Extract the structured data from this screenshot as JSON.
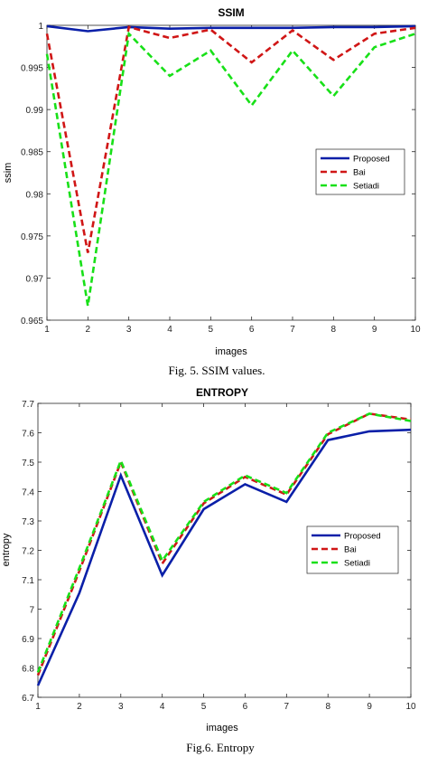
{
  "colors": {
    "Proposed": "#0a1fa8",
    "Bai": "#d01616",
    "Setiadi": "#18e018"
  },
  "legend_placement": "center-right",
  "chart_data": [
    {
      "type": "line",
      "title": "SSIM",
      "xlabel": "images",
      "ylabel": "ssim",
      "caption": "Fig. 5.  SSIM values.",
      "x": [
        1,
        2,
        3,
        4,
        5,
        6,
        7,
        8,
        9,
        10
      ],
      "xlim": [
        1,
        10
      ],
      "ylim": [
        0.965,
        1
      ],
      "xticks": [
        "1",
        "2",
        "3",
        "4",
        "5",
        "6",
        "7",
        "8",
        "9",
        "10"
      ],
      "yticks": [
        "0.965",
        "0.97",
        "0.975",
        "0.98",
        "0.985",
        "0.99",
        "0.995",
        "1"
      ],
      "ytick_values": [
        0.965,
        0.97,
        0.975,
        0.98,
        0.985,
        0.99,
        0.995,
        1
      ],
      "grid": false,
      "series": [
        {
          "name": "Proposed",
          "style": "solid",
          "values": [
            0.9999,
            0.9993,
            0.9998,
            0.9996,
            0.9997,
            0.9997,
            0.9997,
            0.9998,
            0.9998,
            0.9999
          ]
        },
        {
          "name": "Bai",
          "style": "dashed",
          "values": [
            0.999,
            0.973,
            0.9998,
            0.9985,
            0.9995,
            0.9956,
            0.9994,
            0.9959,
            0.999,
            0.9997
          ]
        },
        {
          "name": "Setiadi",
          "style": "dashed",
          "values": [
            0.9966,
            0.9667,
            0.999,
            0.994,
            0.997,
            0.9905,
            0.997,
            0.9916,
            0.9974,
            0.999
          ]
        }
      ]
    },
    {
      "type": "line",
      "title": "ENTROPY",
      "xlabel": "images",
      "ylabel": "entropy",
      "caption": "Fig.6. Entropy",
      "x": [
        1,
        2,
        3,
        4,
        5,
        6,
        7,
        8,
        9,
        10
      ],
      "xlim": [
        1,
        10
      ],
      "ylim": [
        6.7,
        7.7
      ],
      "xticks": [
        "1",
        "2",
        "3",
        "4",
        "5",
        "6",
        "7",
        "8",
        "9",
        "10"
      ],
      "yticks": [
        "6.7",
        "6.8",
        "6.9",
        "7",
        "7.1",
        "7.2",
        "7.3",
        "7.4",
        "7.5",
        "7.6",
        "7.7"
      ],
      "ytick_values": [
        6.7,
        6.8,
        6.9,
        7.0,
        7.1,
        7.2,
        7.3,
        7.4,
        7.5,
        7.6,
        7.7
      ],
      "grid": false,
      "series": [
        {
          "name": "Proposed",
          "style": "solid",
          "values": [
            6.74,
            7.055,
            7.455,
            7.115,
            7.34,
            7.425,
            7.365,
            7.575,
            7.605,
            7.61
          ]
        },
        {
          "name": "Bai",
          "style": "dashed",
          "values": [
            6.775,
            7.13,
            7.5,
            7.155,
            7.36,
            7.45,
            7.39,
            7.595,
            7.665,
            7.645
          ]
        },
        {
          "name": "Setiadi",
          "style": "dashed",
          "values": [
            6.785,
            7.14,
            7.505,
            7.165,
            7.365,
            7.455,
            7.395,
            7.6,
            7.665,
            7.64
          ]
        }
      ]
    }
  ]
}
